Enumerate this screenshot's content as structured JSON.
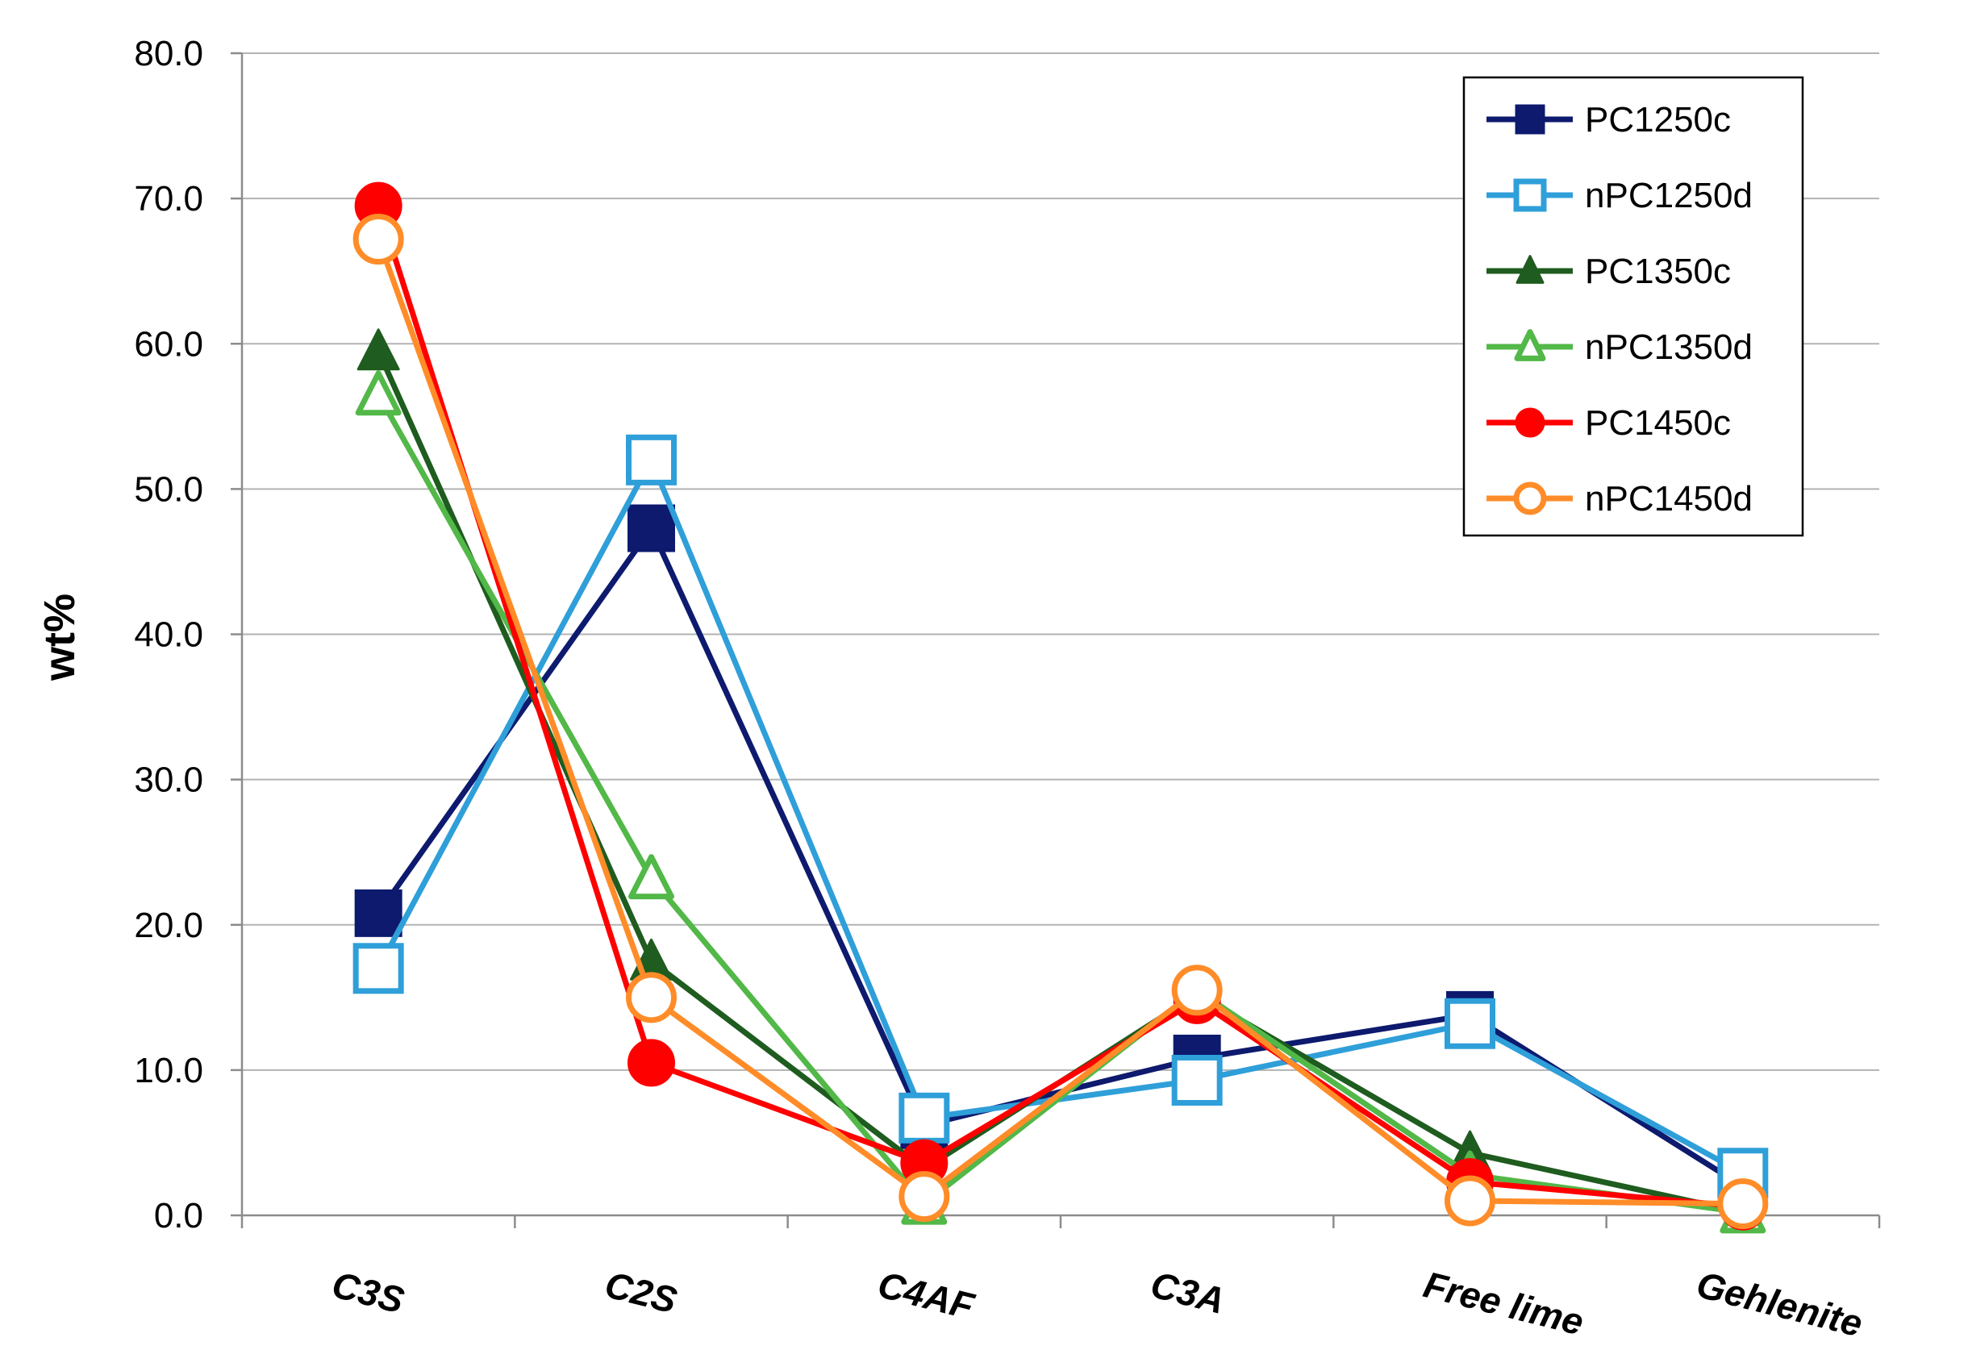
{
  "chart_data": {
    "type": "line",
    "title": "",
    "xlabel": "",
    "ylabel": "wt%",
    "ylim": [
      0,
      80
    ],
    "yticks": [
      0,
      10,
      20,
      30,
      40,
      50,
      60,
      70,
      80
    ],
    "ytick_labels": [
      "0.0",
      "10.0",
      "20.0",
      "30.0",
      "40.0",
      "50.0",
      "60.0",
      "70.0",
      "80.0"
    ],
    "grid": true,
    "legend_position": "top-right",
    "categories": [
      "C3S",
      "C2S",
      "C4AF",
      "C3A",
      "Free lime",
      "Gehlenite"
    ],
    "series": [
      {
        "name": "PC1250c",
        "color": "#0d1a6e",
        "marker": "square",
        "filled": true,
        "values": [
          20.8,
          47.3,
          6.2,
          10.8,
          13.8,
          2.0
        ]
      },
      {
        "name": "nPC1250d",
        "color": "#2f9fd9",
        "marker": "square",
        "filled": false,
        "values": [
          17.0,
          52.0,
          6.7,
          9.3,
          13.2,
          2.9
        ]
      },
      {
        "name": "PC1350c",
        "color": "#1f5c1f",
        "marker": "triangle",
        "filled": true,
        "values": [
          59.5,
          17.5,
          3.2,
          15.2,
          4.3,
          0.2
        ]
      },
      {
        "name": "nPC1350d",
        "color": "#52b848",
        "marker": "triangle",
        "filled": false,
        "values": [
          56.5,
          23.2,
          0.8,
          15.5,
          2.8,
          0.2
        ]
      },
      {
        "name": "PC1450c",
        "color": "#ff0000",
        "marker": "circle",
        "filled": true,
        "values": [
          69.5,
          10.5,
          3.6,
          14.8,
          2.3,
          0.6
        ]
      },
      {
        "name": "nPC1450d",
        "color": "#ff8c28",
        "marker": "circle",
        "filled": false,
        "values": [
          67.2,
          15.0,
          1.3,
          15.5,
          1.0,
          0.8
        ]
      }
    ]
  }
}
